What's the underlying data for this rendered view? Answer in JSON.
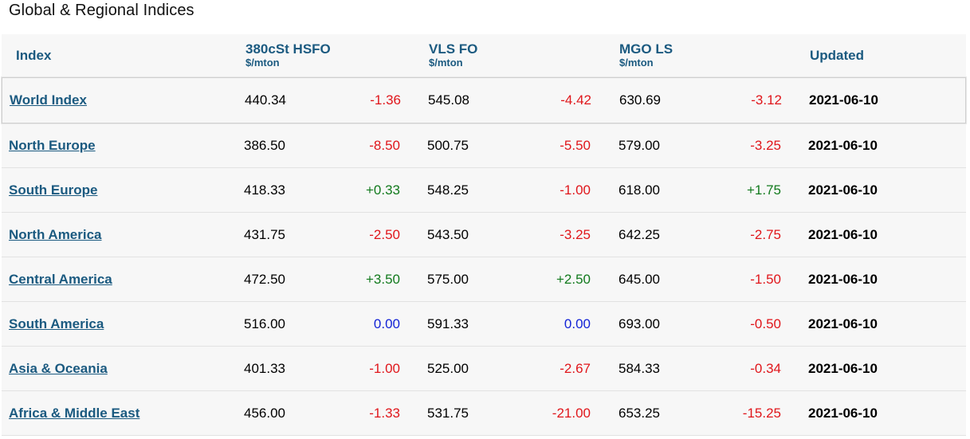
{
  "title": "Global & Regional Indices",
  "columns": {
    "index": "Index",
    "hsfo": {
      "name": "380cSt HSFO",
      "unit": "$/mton"
    },
    "vlsfo": {
      "name": "VLS FO",
      "unit": "$/mton"
    },
    "mgo": {
      "name": "MGO LS",
      "unit": "$/mton"
    },
    "updated": "Updated"
  },
  "rows": [
    {
      "name": "World Index",
      "hsfo": "440.34",
      "hsfo_chg": "-1.36",
      "hsfo_dir": "neg",
      "vlsfo": "545.08",
      "vlsfo_chg": "-4.42",
      "vlsfo_dir": "neg",
      "mgo": "630.69",
      "mgo_chg": "-3.12",
      "mgo_dir": "neg",
      "updated": "2021-06-10"
    },
    {
      "name": "North Europe",
      "hsfo": "386.50",
      "hsfo_chg": "-8.50",
      "hsfo_dir": "neg",
      "vlsfo": "500.75",
      "vlsfo_chg": "-5.50",
      "vlsfo_dir": "neg",
      "mgo": "579.00",
      "mgo_chg": "-3.25",
      "mgo_dir": "neg",
      "updated": "2021-06-10"
    },
    {
      "name": "South Europe",
      "hsfo": "418.33",
      "hsfo_chg": "+0.33",
      "hsfo_dir": "pos",
      "vlsfo": "548.25",
      "vlsfo_chg": "-1.00",
      "vlsfo_dir": "neg",
      "mgo": "618.00",
      "mgo_chg": "+1.75",
      "mgo_dir": "pos",
      "updated": "2021-06-10"
    },
    {
      "name": "North America",
      "hsfo": "431.75",
      "hsfo_chg": "-2.50",
      "hsfo_dir": "neg",
      "vlsfo": "543.50",
      "vlsfo_chg": "-3.25",
      "vlsfo_dir": "neg",
      "mgo": "642.25",
      "mgo_chg": "-2.75",
      "mgo_dir": "neg",
      "updated": "2021-06-10"
    },
    {
      "name": "Central America",
      "hsfo": "472.50",
      "hsfo_chg": "+3.50",
      "hsfo_dir": "pos",
      "vlsfo": "575.00",
      "vlsfo_chg": "+2.50",
      "vlsfo_dir": "pos",
      "mgo": "645.00",
      "mgo_chg": "-1.50",
      "mgo_dir": "neg",
      "updated": "2021-06-10"
    },
    {
      "name": "South America",
      "hsfo": "516.00",
      "hsfo_chg": "0.00",
      "hsfo_dir": "zero",
      "vlsfo": "591.33",
      "vlsfo_chg": "0.00",
      "vlsfo_dir": "zero",
      "mgo": "693.00",
      "mgo_chg": "-0.50",
      "mgo_dir": "neg",
      "updated": "2021-06-10"
    },
    {
      "name": "Asia & Oceania",
      "hsfo": "401.33",
      "hsfo_chg": "-1.00",
      "hsfo_dir": "neg",
      "vlsfo": "525.00",
      "vlsfo_chg": "-2.67",
      "vlsfo_dir": "neg",
      "mgo": "584.33",
      "mgo_chg": "-0.34",
      "mgo_dir": "neg",
      "updated": "2021-06-10"
    },
    {
      "name": "Africa & Middle East",
      "hsfo": "456.00",
      "hsfo_chg": "-1.33",
      "hsfo_dir": "neg",
      "vlsfo": "531.75",
      "vlsfo_chg": "-21.00",
      "vlsfo_dir": "neg",
      "mgo": "653.25",
      "mgo_chg": "-15.25",
      "mgo_dir": "neg",
      "updated": "2021-06-10"
    }
  ],
  "colors": {
    "header": "#1b5a80",
    "negative": "#e0161b",
    "positive": "#127a1d",
    "zero": "#1424d6"
  }
}
